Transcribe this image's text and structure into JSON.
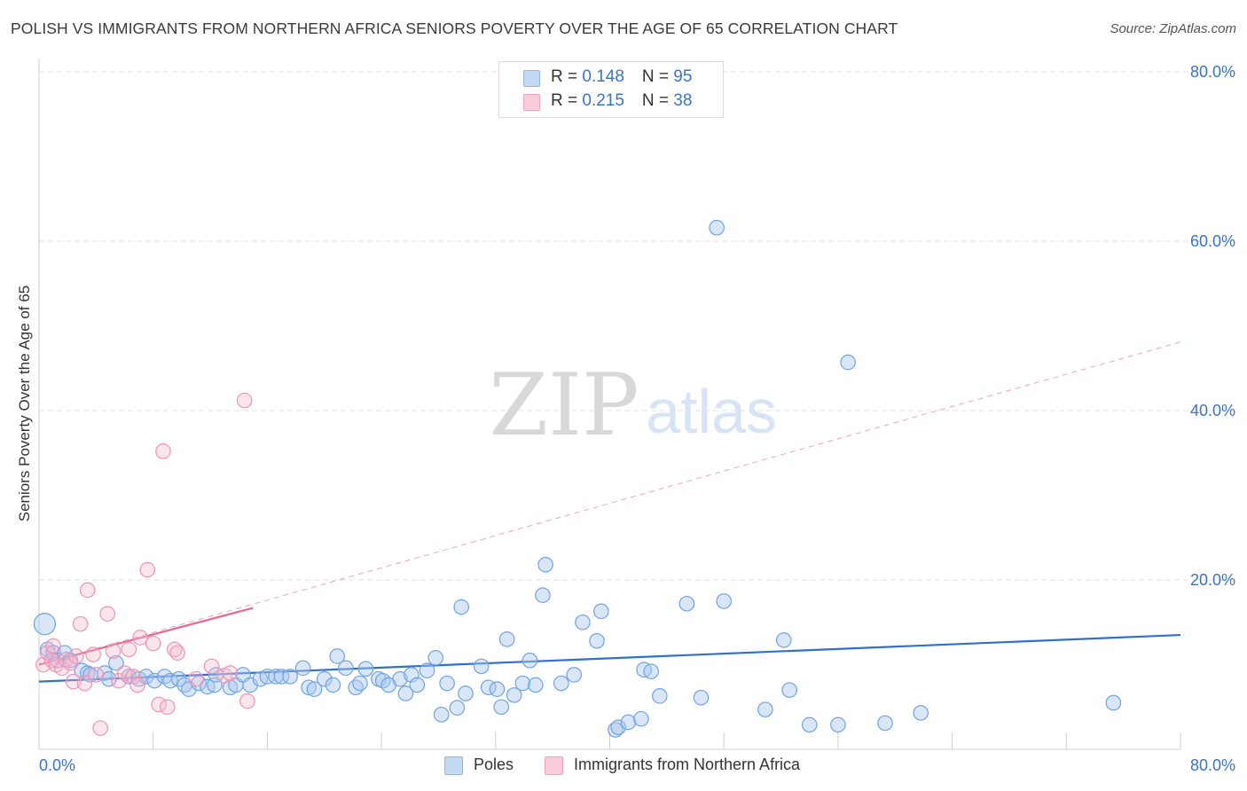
{
  "title": "POLISH VS IMMIGRANTS FROM NORTHERN AFRICA SENIORS POVERTY OVER THE AGE OF 65 CORRELATION CHART",
  "source": "Source: ZipAtlas.com",
  "watermark": {
    "zip": "ZIP",
    "atlas": "atlas"
  },
  "legend_top": {
    "rows": [
      {
        "r_label": "R = ",
        "r_value": "0.148",
        "n_label": "N = ",
        "n_value": "95",
        "color": "#a9c8f0"
      },
      {
        "r_label": "R = ",
        "r_value": "0.215",
        "n_label": "N = ",
        "n_value": "38",
        "color": "#f5b8cb"
      }
    ]
  },
  "legend_bottom": [
    {
      "label": "Poles",
      "color": "#a9c8f0"
    },
    {
      "label": "Immigrants from Northern Africa",
      "color": "#f5b8cb"
    }
  ],
  "chart_data": {
    "type": "scatter",
    "title": "POLISH VS IMMIGRANTS FROM NORTHERN AFRICA SENIORS POVERTY OVER THE AGE OF 65 CORRELATION CHART",
    "xlabel": "",
    "ylabel": "Seniors Poverty Over the Age of 65",
    "xlim": [
      0,
      80
    ],
    "ylim": [
      0,
      80
    ],
    "x_tick_labels": [
      "0.0%",
      "80.0%"
    ],
    "y_tick_labels": [
      "20.0%",
      "40.0%",
      "60.0%",
      "80.0%"
    ],
    "y_ticks": [
      20,
      40,
      60,
      80
    ],
    "grid": true,
    "legend_position": "top-center",
    "series": [
      {
        "name": "Poles",
        "color": "#6fa3e0",
        "trend": {
          "x": [
            0,
            80
          ],
          "y": [
            8.0,
            13.5
          ],
          "style": "solid",
          "color": "#2f6fcf"
        },
        "points": [
          [
            0.4,
            14.8
          ],
          [
            0.6,
            11.8
          ],
          [
            1.0,
            11.4
          ],
          [
            1.3,
            10.5
          ],
          [
            1.8,
            11.4
          ],
          [
            2.2,
            10.5
          ],
          [
            3.0,
            9.3
          ],
          [
            3.4,
            9.0
          ],
          [
            3.6,
            8.8
          ],
          [
            4.6,
            9.0
          ],
          [
            4.9,
            8.3
          ],
          [
            5.4,
            10.2
          ],
          [
            6.3,
            8.6
          ],
          [
            7.0,
            8.3
          ],
          [
            7.5,
            8.6
          ],
          [
            8.1,
            8.1
          ],
          [
            8.8,
            8.6
          ],
          [
            9.2,
            8.1
          ],
          [
            9.8,
            8.3
          ],
          [
            10.2,
            7.6
          ],
          [
            10.5,
            7.1
          ],
          [
            11.2,
            7.8
          ],
          [
            11.8,
            7.4
          ],
          [
            12.3,
            7.6
          ],
          [
            12.4,
            8.8
          ],
          [
            13.4,
            7.3
          ],
          [
            13.8,
            7.6
          ],
          [
            14.3,
            8.8
          ],
          [
            14.8,
            7.6
          ],
          [
            15.5,
            8.3
          ],
          [
            16.0,
            8.6
          ],
          [
            16.6,
            8.6
          ],
          [
            17.0,
            8.6
          ],
          [
            17.6,
            8.6
          ],
          [
            18.5,
            9.6
          ],
          [
            18.9,
            7.3
          ],
          [
            19.3,
            7.1
          ],
          [
            20.0,
            8.3
          ],
          [
            20.6,
            7.6
          ],
          [
            20.9,
            11.0
          ],
          [
            21.5,
            9.6
          ],
          [
            22.2,
            7.3
          ],
          [
            22.5,
            7.8
          ],
          [
            22.9,
            9.5
          ],
          [
            23.8,
            8.3
          ],
          [
            24.1,
            8.1
          ],
          [
            24.5,
            7.6
          ],
          [
            25.3,
            8.3
          ],
          [
            25.7,
            6.6
          ],
          [
            26.1,
            8.8
          ],
          [
            26.5,
            7.6
          ],
          [
            27.2,
            9.3
          ],
          [
            27.8,
            10.8
          ],
          [
            28.2,
            4.1
          ],
          [
            28.6,
            7.8
          ],
          [
            29.3,
            4.9
          ],
          [
            29.6,
            16.8
          ],
          [
            29.9,
            6.6
          ],
          [
            31.0,
            9.8
          ],
          [
            31.5,
            7.3
          ],
          [
            32.1,
            7.1
          ],
          [
            32.4,
            5.0
          ],
          [
            32.8,
            13.0
          ],
          [
            33.3,
            6.4
          ],
          [
            33.9,
            7.8
          ],
          [
            34.4,
            10.5
          ],
          [
            34.8,
            7.6
          ],
          [
            35.3,
            18.2
          ],
          [
            35.5,
            21.8
          ],
          [
            36.6,
            7.8
          ],
          [
            37.5,
            8.8
          ],
          [
            38.1,
            15.0
          ],
          [
            39.1,
            12.8
          ],
          [
            39.4,
            16.3
          ],
          [
            40.4,
            2.3
          ],
          [
            40.6,
            2.6
          ],
          [
            41.3,
            3.2
          ],
          [
            42.2,
            3.6
          ],
          [
            42.4,
            9.4
          ],
          [
            42.9,
            9.2
          ],
          [
            43.5,
            6.3
          ],
          [
            45.4,
            17.2
          ],
          [
            46.4,
            6.1
          ],
          [
            47.5,
            61.6
          ],
          [
            48.0,
            17.5
          ],
          [
            50.9,
            4.7
          ],
          [
            52.2,
            12.9
          ],
          [
            52.6,
            7.0
          ],
          [
            54.0,
            2.9
          ],
          [
            56.7,
            45.7
          ],
          [
            56.0,
            2.9
          ],
          [
            59.3,
            3.1
          ],
          [
            61.8,
            4.3
          ],
          [
            75.3,
            5.5
          ]
        ]
      },
      {
        "name": "Immigrants from Northern Africa",
        "color": "#f08cad",
        "trend": {
          "x": [
            0,
            15
          ],
          "y": [
            10.0,
            16.7
          ],
          "extended_x": [
            0,
            80
          ],
          "extended_y": [
            10.0,
            48.1
          ],
          "style": "solid-then-dashed",
          "color": "#e46a93"
        },
        "points": [
          [
            0.3,
            10.0
          ],
          [
            0.6,
            11.4
          ],
          [
            0.9,
            10.5
          ],
          [
            1.0,
            12.2
          ],
          [
            1.2,
            10.0
          ],
          [
            1.6,
            9.6
          ],
          [
            1.9,
            10.6
          ],
          [
            2.2,
            10.2
          ],
          [
            2.4,
            8.0
          ],
          [
            2.6,
            11.0
          ],
          [
            2.9,
            14.8
          ],
          [
            3.2,
            7.8
          ],
          [
            3.4,
            18.8
          ],
          [
            3.8,
            11.2
          ],
          [
            4.0,
            8.8
          ],
          [
            4.3,
            2.5
          ],
          [
            4.8,
            16.0
          ],
          [
            5.2,
            11.6
          ],
          [
            5.6,
            8.1
          ],
          [
            6.0,
            9.0
          ],
          [
            6.3,
            11.8
          ],
          [
            6.6,
            8.6
          ],
          [
            6.9,
            7.6
          ],
          [
            7.1,
            13.2
          ],
          [
            7.6,
            21.2
          ],
          [
            8.0,
            12.5
          ],
          [
            8.4,
            5.3
          ],
          [
            8.7,
            35.2
          ],
          [
            9.0,
            5.0
          ],
          [
            9.5,
            11.8
          ],
          [
            9.7,
            11.4
          ],
          [
            11.0,
            8.3
          ],
          [
            12.1,
            9.8
          ],
          [
            13.0,
            8.7
          ],
          [
            13.4,
            9.0
          ],
          [
            14.4,
            41.2
          ],
          [
            14.6,
            5.7
          ]
        ]
      }
    ]
  }
}
